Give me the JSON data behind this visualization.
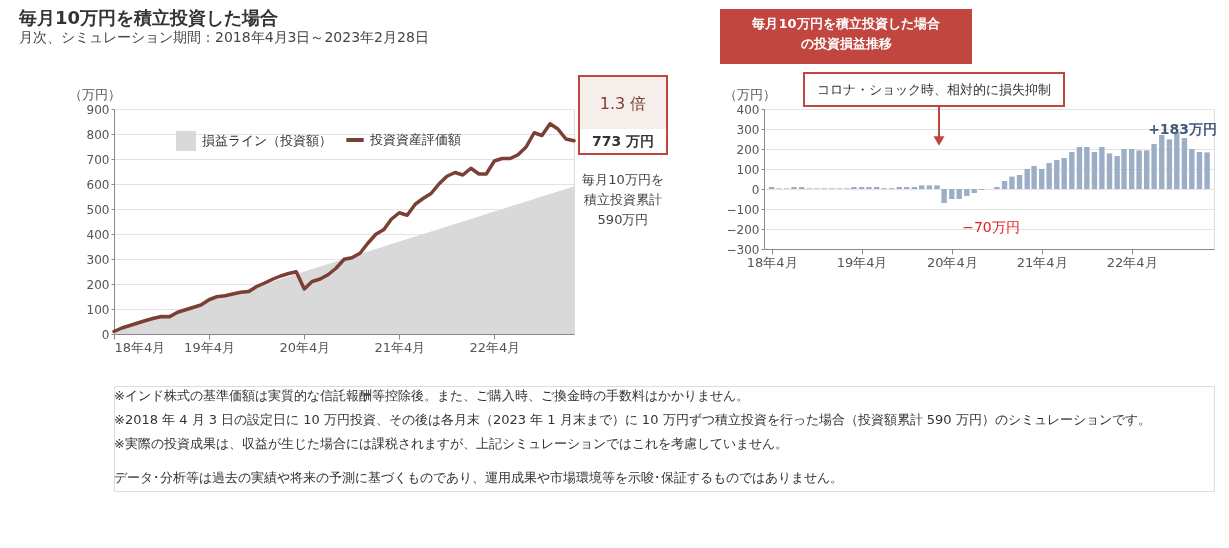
{
  "chart_data": [
    {
      "type": "line",
      "title": "毎月10万円を積立投資した場合",
      "subtitle": "月次、シミュレーション期間：2018年4月3日～2023年2月28日",
      "ylabel": "（万円）",
      "x": [
        "2018-04",
        "2018-05",
        "2018-06",
        "2018-07",
        "2018-08",
        "2018-09",
        "2018-10",
        "2018-11",
        "2018-12",
        "2019-01",
        "2019-02",
        "2019-03",
        "2019-04",
        "2019-05",
        "2019-06",
        "2019-07",
        "2019-08",
        "2019-09",
        "2019-10",
        "2019-11",
        "2019-12",
        "2020-01",
        "2020-02",
        "2020-03",
        "2020-04",
        "2020-05",
        "2020-06",
        "2020-07",
        "2020-08",
        "2020-09",
        "2020-10",
        "2020-11",
        "2020-12",
        "2021-01",
        "2021-02",
        "2021-03",
        "2021-04",
        "2021-05",
        "2021-06",
        "2021-07",
        "2021-08",
        "2021-09",
        "2021-10",
        "2021-11",
        "2021-12",
        "2022-01",
        "2022-02",
        "2022-03",
        "2022-04",
        "2022-05",
        "2022-06",
        "2022-07",
        "2022-08",
        "2022-09",
        "2022-10",
        "2022-11",
        "2022-12",
        "2023-01",
        "2023-02"
      ],
      "series": [
        {
          "name": "損益ライン（投資額）",
          "type": "area",
          "color": "#d9d9d9",
          "values": [
            10,
            20,
            30,
            40,
            50,
            60,
            70,
            80,
            90,
            100,
            110,
            120,
            130,
            140,
            150,
            160,
            170,
            180,
            190,
            200,
            210,
            220,
            230,
            240,
            250,
            260,
            270,
            280,
            290,
            300,
            310,
            320,
            330,
            340,
            350,
            360,
            370,
            380,
            390,
            400,
            410,
            420,
            430,
            440,
            450,
            460,
            470,
            480,
            490,
            500,
            510,
            520,
            530,
            540,
            550,
            560,
            570,
            580,
            590
          ]
        },
        {
          "name": "投資資産評価額",
          "type": "line",
          "color": "#7b3f35",
          "values": [
            10,
            24,
            34,
            44,
            54,
            63,
            70,
            69,
            87,
            97,
            107,
            116,
            137,
            149,
            153,
            160,
            167,
            170,
            190,
            204,
            219,
            232,
            242,
            249,
            180,
            210,
            220,
            237,
            263,
            299,
            305,
            323,
            363,
            399,
            418,
            459,
            485,
            475,
            519,
            542,
            562,
            601,
            631,
            646,
            636,
            663,
            640,
            640,
            692,
            702,
            702,
            717,
            748,
            805,
            794,
            841,
            820,
            780,
            773
          ]
        }
      ],
      "xlim": [
        "2018-04",
        "2023-02"
      ],
      "xticks": [
        {
          "value": "2018-04",
          "label": "18年4月"
        },
        {
          "value": "2019-04",
          "label": "19年4月"
        },
        {
          "value": "2020-04",
          "label": "20年4月"
        },
        {
          "value": "2021-04",
          "label": "21年4月"
        },
        {
          "value": "2022-04",
          "label": "22年4月"
        }
      ],
      "ylim": [
        0,
        900
      ],
      "yticks": [
        0,
        100,
        200,
        300,
        400,
        500,
        600,
        700,
        800,
        900
      ],
      "grid": "y",
      "legend": "top",
      "annotations": [
        "1.3 倍",
        "773 万円",
        "毎月10万円を積立投資累計590万円",
        "※インド株式の基準価額は実質的な信託報酬等控除後。また、ご購入時、ご換金時の手数料はかかりません。",
        "※2018 年 4 月 3 日の設定日に 10 万円投資、その後は各月末（2023 年 1 月末まで）に 10 万円ずつ積立投資を行った場合（投資額累計 590 万円）のシミュレーションです。",
        "※実際の投資成果は、収益が生じた場合には課税されますが、上記シミュレーションではこれを考慮していません。",
        "データ･分析等は過去の実績や将来の予測に基づくものであり、運用成果や市場環境等を示唆･保証するものではありません。"
      ]
    },
    {
      "type": "bar",
      "title": "毎月10万円を積立投資した場合の投資損益推移",
      "ylabel": "（万円）",
      "x": [
        "2018-04",
        "2018-05",
        "2018-06",
        "2018-07",
        "2018-08",
        "2018-09",
        "2018-10",
        "2018-11",
        "2018-12",
        "2019-01",
        "2019-02",
        "2019-03",
        "2019-04",
        "2019-05",
        "2019-06",
        "2019-07",
        "2019-08",
        "2019-09",
        "2019-10",
        "2019-11",
        "2019-12",
        "2020-01",
        "2020-02",
        "2020-03",
        "2020-04",
        "2020-05",
        "2020-06",
        "2020-07",
        "2020-08",
        "2020-09",
        "2020-10",
        "2020-11",
        "2020-12",
        "2021-01",
        "2021-02",
        "2021-03",
        "2021-04",
        "2021-05",
        "2021-06",
        "2021-07",
        "2021-08",
        "2021-09",
        "2021-10",
        "2021-11",
        "2021-12",
        "2022-01",
        "2022-02",
        "2022-03",
        "2022-04",
        "2022-05",
        "2022-06",
        "2022-07",
        "2022-08",
        "2022-09",
        "2022-10",
        "2022-11",
        "2022-12",
        "2023-01",
        "2023-02"
      ],
      "values": [
        10,
        3,
        3,
        10,
        10,
        3,
        3,
        3,
        3,
        3,
        3,
        10,
        10,
        10,
        10,
        4,
        4,
        10,
        10,
        10,
        18,
        18,
        18,
        -70,
        -50,
        -50,
        -35,
        -20,
        -5,
        0,
        10,
        40,
        62,
        70,
        100,
        115,
        100,
        130,
        145,
        155,
        185,
        210,
        210,
        185,
        210,
        178,
        165,
        200,
        200,
        193,
        193,
        225,
        270,
        248,
        285,
        255,
        200,
        185,
        183
      ],
      "color": "#9caec6",
      "xlim": [
        "2018-03",
        "2023-03"
      ],
      "xticks": [
        {
          "value": "2018-04",
          "label": "18年4月"
        },
        {
          "value": "2019-04",
          "label": "19年4月"
        },
        {
          "value": "2020-04",
          "label": "20年4月"
        },
        {
          "value": "2021-04",
          "label": "21年4月"
        },
        {
          "value": "2022-04",
          "label": "22年4月"
        }
      ],
      "ylim": [
        -300,
        400
      ],
      "yticks": [
        -300,
        -200,
        -100,
        0,
        100,
        200,
        300,
        400
      ],
      "grid": "y",
      "annotations": [
        "コロナ・ショック時、相対的に損失抑制",
        {
          "text": "−70万円",
          "x": "2020-03",
          "y": -70
        },
        {
          "text": "+183万円",
          "x": "2023-02",
          "y": 183
        }
      ]
    }
  ]
}
